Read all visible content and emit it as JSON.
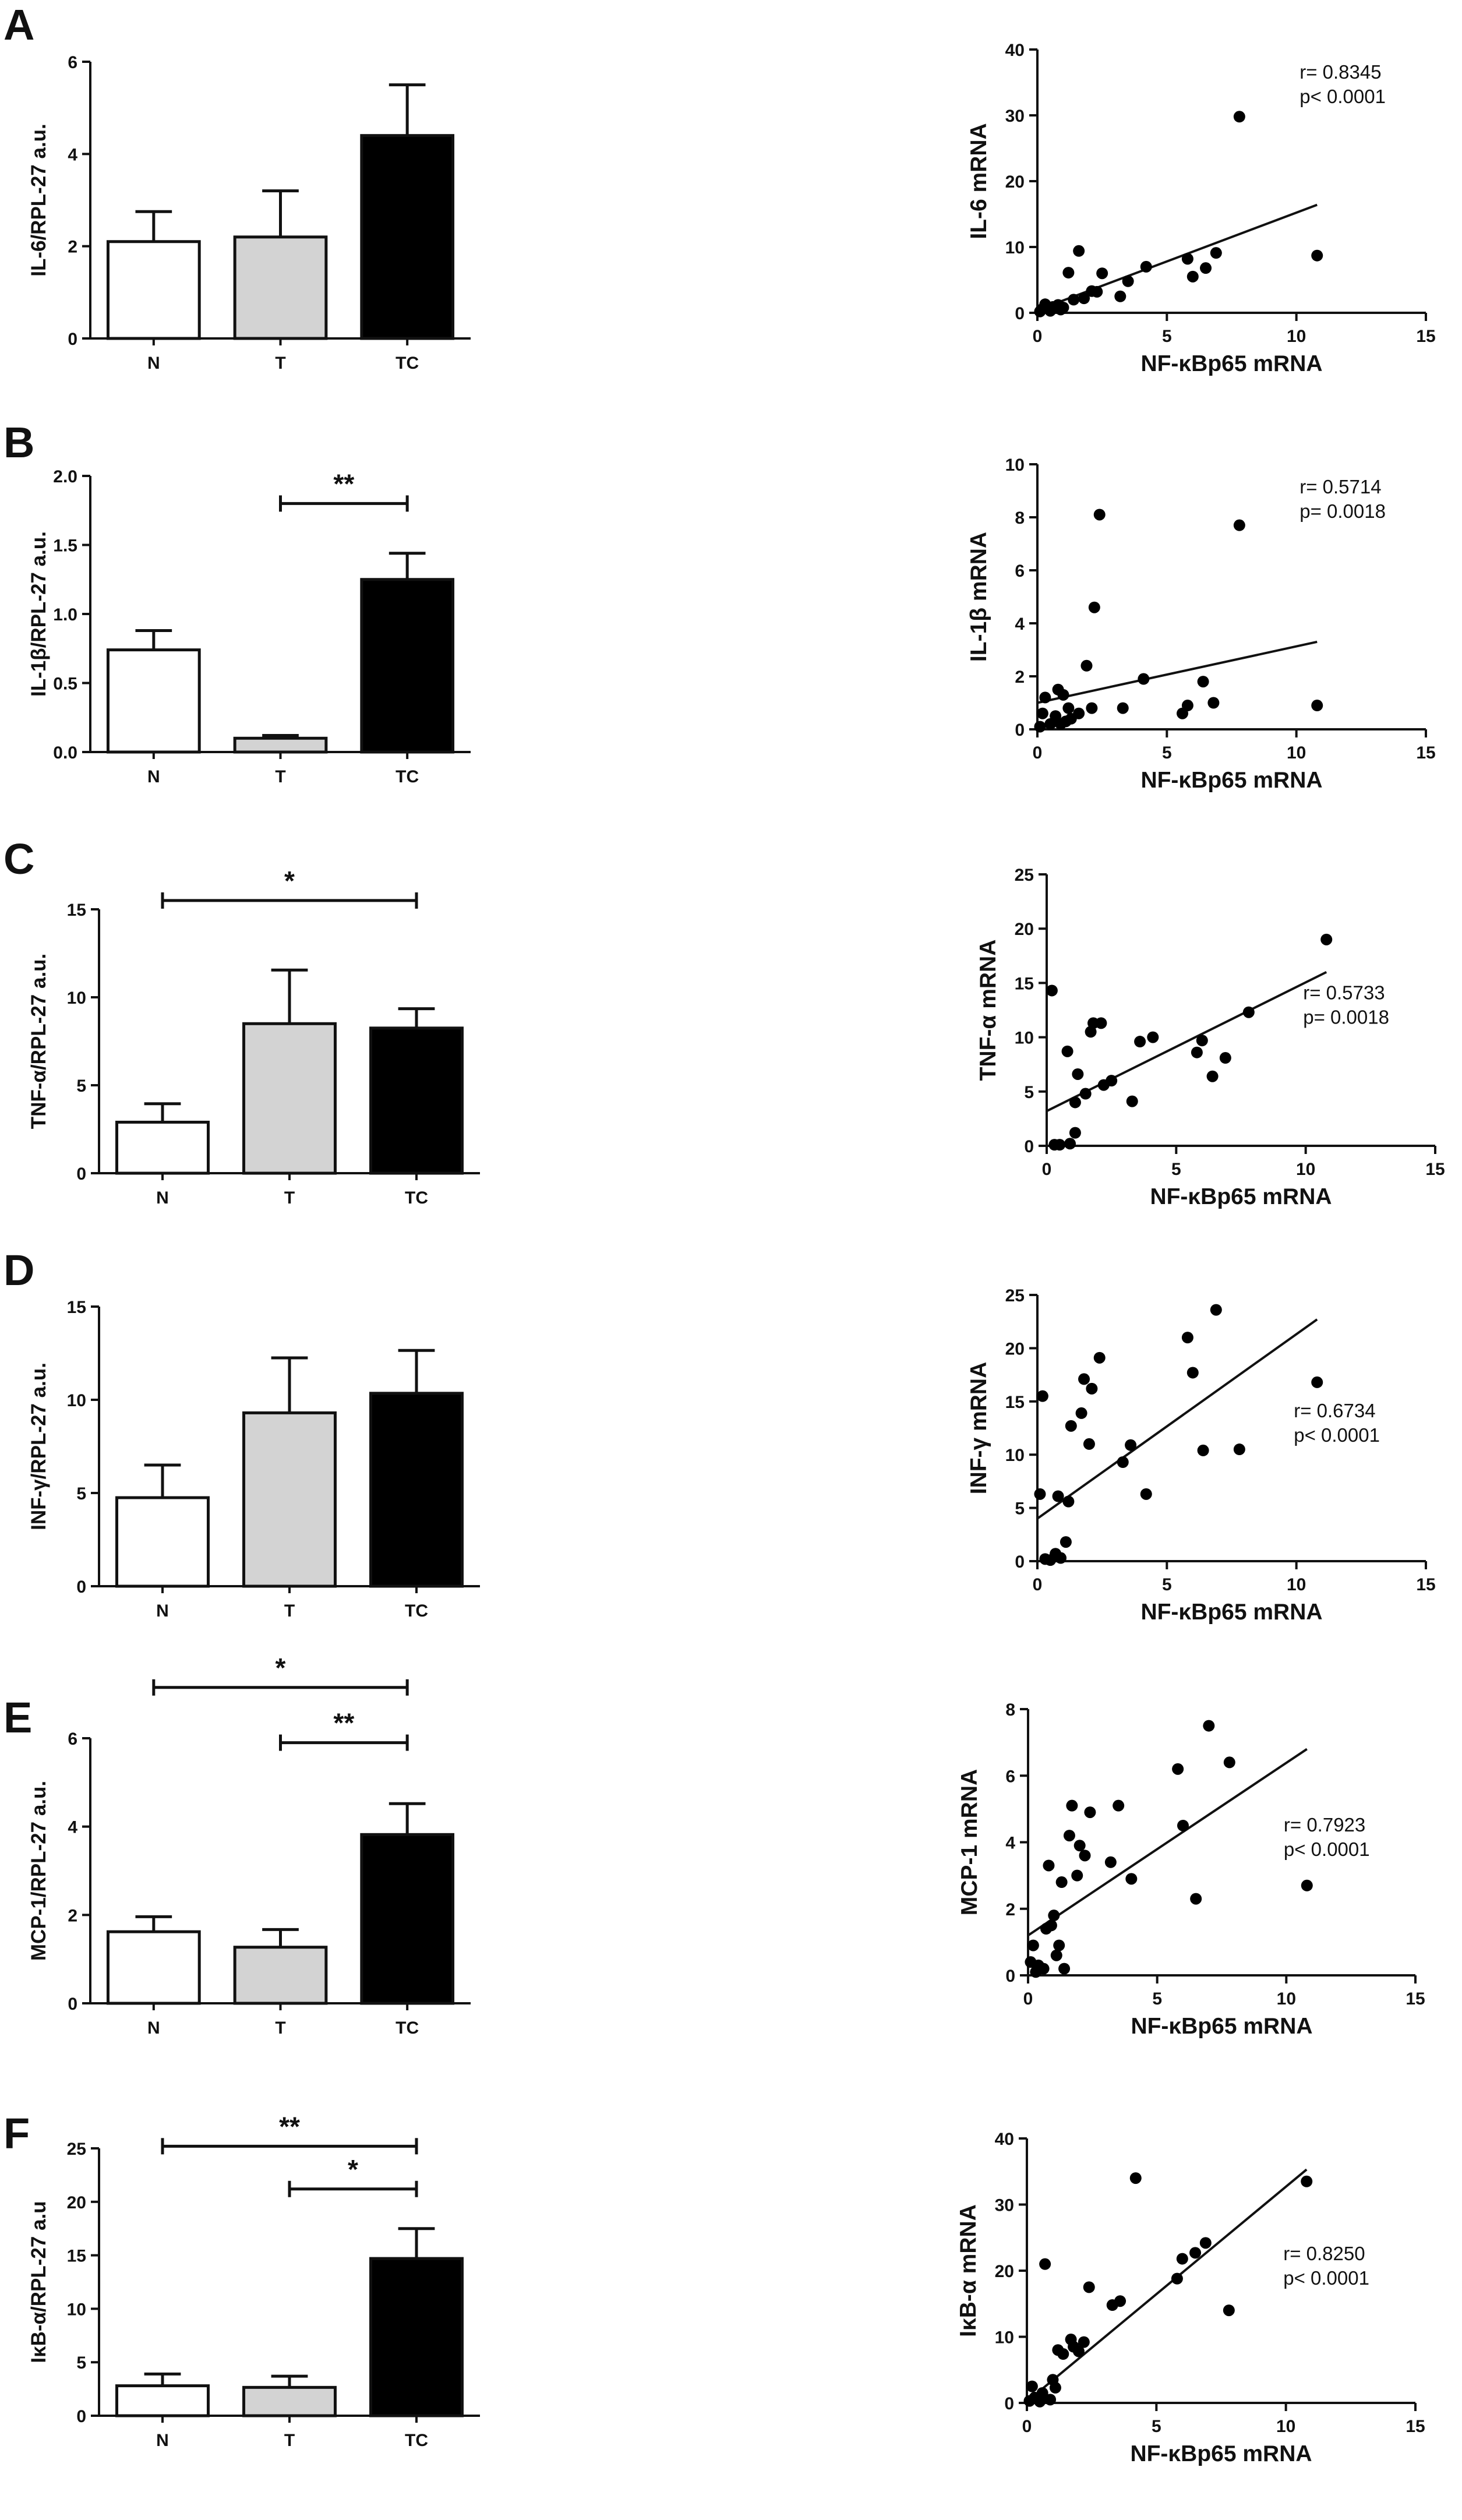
{
  "chart_data": [
    {
      "panel": "A",
      "type": "bar",
      "categories": [
        "N",
        "T",
        "TC"
      ],
      "values": [
        2.1,
        2.2,
        4.4
      ],
      "errors": [
        0.65,
        1.0,
        1.1
      ],
      "colors": [
        "#ffffff",
        "#d3d3d3",
        "#000000"
      ],
      "ylabel": "IL-6/RPL-27 a.u.",
      "ylim": [
        0,
        6
      ],
      "yticks": [
        0,
        2,
        4,
        6
      ],
      "significance": []
    },
    {
      "panel": "A",
      "type": "scatter",
      "xlabel": "NF-κBp65 mRNA",
      "ylabel": "IL-6 mRNA",
      "xlim": [
        0,
        15
      ],
      "xticks": [
        0,
        5,
        10,
        15
      ],
      "ylim": [
        0,
        40
      ],
      "yticks": [
        0,
        10,
        20,
        30,
        40
      ],
      "stats": [
        "r= 0.8345",
        "p< 0.0001"
      ],
      "stats_pos": "top-right",
      "fit": [
        [
          0,
          0.4
        ],
        [
          10.8,
          16.4
        ]
      ],
      "points": [
        [
          0.1,
          0.2
        ],
        [
          0.2,
          0.6
        ],
        [
          0.3,
          1.3
        ],
        [
          0.5,
          0.3
        ],
        [
          0.6,
          0.9
        ],
        [
          0.8,
          1.2
        ],
        [
          0.9,
          0.5
        ],
        [
          1.0,
          0.8
        ],
        [
          1.2,
          6.1
        ],
        [
          1.4,
          2.0
        ],
        [
          1.6,
          9.4
        ],
        [
          1.8,
          2.2
        ],
        [
          2.1,
          3.3
        ],
        [
          2.3,
          3.2
        ],
        [
          2.5,
          6.0
        ],
        [
          3.2,
          2.5
        ],
        [
          3.5,
          4.8
        ],
        [
          4.2,
          7.0
        ],
        [
          5.8,
          8.2
        ],
        [
          6.0,
          5.5
        ],
        [
          6.5,
          6.8
        ],
        [
          6.9,
          9.1
        ],
        [
          7.8,
          29.8
        ],
        [
          10.8,
          8.7
        ]
      ]
    },
    {
      "panel": "B",
      "type": "bar",
      "categories": [
        "N",
        "T",
        "TC"
      ],
      "values": [
        0.74,
        0.1,
        1.25
      ],
      "errors": [
        0.14,
        0.02,
        0.19
      ],
      "colors": [
        "#ffffff",
        "#d3d3d3",
        "#000000"
      ],
      "ylabel": "IL-1β/RPL-27 a.u.",
      "ylim": [
        0,
        2
      ],
      "yticks": [
        0.0,
        0.5,
        1.0,
        1.5,
        2.0
      ],
      "significance": [
        {
          "from": 1,
          "to": 2,
          "label": "**",
          "y": 1.8
        }
      ]
    },
    {
      "panel": "B",
      "type": "scatter",
      "xlabel": "NF-κBp65 mRNA",
      "ylabel": "IL-1β mRNA",
      "xlim": [
        0,
        15
      ],
      "xticks": [
        0,
        5,
        10,
        15
      ],
      "ylim": [
        0,
        10
      ],
      "yticks": [
        0,
        2,
        4,
        6,
        8,
        10
      ],
      "stats": [
        "r= 0.5714",
        "p= 0.0018"
      ],
      "stats_pos": "top-right",
      "fit": [
        [
          0,
          1.0
        ],
        [
          10.8,
          3.3
        ]
      ],
      "points": [
        [
          0.1,
          0.1
        ],
        [
          0.2,
          0.6
        ],
        [
          0.3,
          1.2
        ],
        [
          0.5,
          0.2
        ],
        [
          0.7,
          0.5
        ],
        [
          0.8,
          1.5
        ],
        [
          0.9,
          0.2
        ],
        [
          1.0,
          1.3
        ],
        [
          1.1,
          0.3
        ],
        [
          1.2,
          0.8
        ],
        [
          1.3,
          0.4
        ],
        [
          1.6,
          0.6
        ],
        [
          1.9,
          2.4
        ],
        [
          2.1,
          0.8
        ],
        [
          2.2,
          4.6
        ],
        [
          2.4,
          8.1
        ],
        [
          3.3,
          0.8
        ],
        [
          4.1,
          1.9
        ],
        [
          5.6,
          0.6
        ],
        [
          5.8,
          0.9
        ],
        [
          6.4,
          1.8
        ],
        [
          6.8,
          1.0
        ],
        [
          7.8,
          7.7
        ],
        [
          10.8,
          0.9
        ]
      ]
    },
    {
      "panel": "C",
      "type": "bar",
      "categories": [
        "N",
        "T",
        "TC"
      ],
      "values": [
        2.9,
        8.5,
        8.25
      ],
      "errors": [
        1.05,
        3.05,
        1.1
      ],
      "colors": [
        "#ffffff",
        "#d3d3d3",
        "#000000"
      ],
      "ylabel": "TNF-α/RPL-27 a.u.",
      "ylim": [
        0,
        15
      ],
      "yticks": [
        0,
        5,
        10,
        15
      ],
      "significance": [
        {
          "from": 0,
          "to": 2,
          "label": "*",
          "y": 15.5
        }
      ]
    },
    {
      "panel": "C",
      "type": "scatter",
      "xlabel": "NF-κBp65 mRNA",
      "ylabel": "TNF-α mRNA",
      "xlim": [
        0,
        15
      ],
      "xticks": [
        0,
        5,
        10,
        15
      ],
      "ylim": [
        0,
        25
      ],
      "yticks": [
        0,
        5,
        10,
        15,
        20,
        25
      ],
      "stats": [
        "r= 0.5733",
        "p= 0.0018"
      ],
      "stats_pos": "right",
      "fit": [
        [
          0,
          3.2
        ],
        [
          10.8,
          16.0
        ]
      ],
      "points": [
        [
          0.2,
          14.3
        ],
        [
          0.3,
          0.1
        ],
        [
          0.5,
          0.1
        ],
        [
          0.8,
          8.7
        ],
        [
          0.9,
          0.2
        ],
        [
          1.1,
          1.2
        ],
        [
          1.1,
          4.0
        ],
        [
          1.2,
          6.6
        ],
        [
          1.5,
          4.8
        ],
        [
          1.7,
          10.5
        ],
        [
          1.8,
          11.3
        ],
        [
          2.1,
          11.3
        ],
        [
          2.2,
          5.6
        ],
        [
          2.5,
          6.0
        ],
        [
          3.3,
          4.1
        ],
        [
          3.6,
          9.6
        ],
        [
          4.1,
          10.0
        ],
        [
          5.8,
          8.6
        ],
        [
          6.0,
          9.7
        ],
        [
          6.4,
          6.4
        ],
        [
          6.9,
          8.1
        ],
        [
          7.8,
          12.3
        ],
        [
          10.8,
          19.0
        ]
      ]
    },
    {
      "panel": "D",
      "type": "bar",
      "categories": [
        "N",
        "T",
        "TC"
      ],
      "values": [
        4.75,
        9.3,
        10.35
      ],
      "errors": [
        1.75,
        2.95,
        2.3
      ],
      "colors": [
        "#ffffff",
        "#d3d3d3",
        "#000000"
      ],
      "ylabel": "INF-γ/RPL-27 a.u.",
      "ylim": [
        0,
        15
      ],
      "yticks": [
        0,
        5,
        10,
        15
      ],
      "significance": []
    },
    {
      "panel": "D",
      "type": "scatter",
      "xlabel": "NF-κBp65 mRNA",
      "ylabel": "INF-γ mRNA",
      "xlim": [
        0,
        15
      ],
      "xticks": [
        0,
        5,
        10,
        15
      ],
      "ylim": [
        0,
        25
      ],
      "yticks": [
        0,
        5,
        10,
        15,
        20,
        25
      ],
      "stats": [
        "r= 0.6734",
        "p< 0.0001"
      ],
      "stats_pos": "right",
      "fit": [
        [
          0,
          4.0
        ],
        [
          10.8,
          22.7
        ]
      ],
      "points": [
        [
          0.1,
          6.3
        ],
        [
          0.2,
          15.5
        ],
        [
          0.3,
          0.2
        ],
        [
          0.5,
          0.1
        ],
        [
          0.7,
          0.7
        ],
        [
          0.8,
          6.1
        ],
        [
          0.9,
          0.3
        ],
        [
          1.1,
          1.8
        ],
        [
          1.2,
          5.6
        ],
        [
          1.3,
          12.7
        ],
        [
          1.7,
          13.9
        ],
        [
          1.8,
          17.1
        ],
        [
          2.0,
          11.0
        ],
        [
          2.1,
          16.2
        ],
        [
          2.4,
          19.1
        ],
        [
          3.3,
          9.3
        ],
        [
          3.6,
          10.9
        ],
        [
          4.2,
          6.3
        ],
        [
          5.8,
          21.0
        ],
        [
          6.0,
          17.7
        ],
        [
          6.4,
          10.4
        ],
        [
          6.9,
          23.6
        ],
        [
          7.8,
          10.5
        ],
        [
          10.8,
          16.8
        ]
      ]
    },
    {
      "panel": "E",
      "type": "bar",
      "categories": [
        "N",
        "T",
        "TC"
      ],
      "values": [
        1.62,
        1.27,
        3.82
      ],
      "errors": [
        0.34,
        0.4,
        0.7
      ],
      "colors": [
        "#ffffff",
        "#d3d3d3",
        "#000000"
      ],
      "ylabel": "MCP-1/RPL-27 a.u.",
      "ylim": [
        0,
        6
      ],
      "yticks": [
        0,
        2,
        4,
        6
      ],
      "significance": [
        {
          "from": 0,
          "to": 2,
          "label": "*",
          "y": 7.15
        },
        {
          "from": 1,
          "to": 2,
          "label": "**",
          "y": 5.9
        }
      ]
    },
    {
      "panel": "E",
      "type": "scatter",
      "xlabel": "NF-κBp65 mRNA",
      "ylabel": "MCP-1 mRNA",
      "xlim": [
        0,
        15
      ],
      "xticks": [
        0,
        5,
        10,
        15
      ],
      "ylim": [
        0,
        8
      ],
      "yticks": [
        0,
        2,
        4,
        6,
        8
      ],
      "stats": [
        "r= 0.7923",
        "p< 0.0001"
      ],
      "stats_pos": "right",
      "fit": [
        [
          0,
          1.2
        ],
        [
          10.8,
          6.8
        ]
      ],
      "points": [
        [
          0.1,
          0.4
        ],
        [
          0.2,
          0.9
        ],
        [
          0.3,
          0.1
        ],
        [
          0.4,
          0.3
        ],
        [
          0.6,
          0.2
        ],
        [
          0.7,
          1.4
        ],
        [
          0.8,
          3.3
        ],
        [
          0.9,
          1.5
        ],
        [
          1.0,
          1.8
        ],
        [
          1.1,
          0.6
        ],
        [
          1.2,
          0.9
        ],
        [
          1.3,
          2.8
        ],
        [
          1.4,
          0.2
        ],
        [
          1.6,
          4.2
        ],
        [
          1.7,
          5.1
        ],
        [
          1.9,
          3.0
        ],
        [
          2.0,
          3.9
        ],
        [
          2.2,
          3.6
        ],
        [
          2.4,
          4.9
        ],
        [
          3.2,
          3.4
        ],
        [
          3.5,
          5.1
        ],
        [
          4.0,
          2.9
        ],
        [
          5.8,
          6.2
        ],
        [
          6.0,
          4.5
        ],
        [
          6.5,
          2.3
        ],
        [
          7.0,
          7.5
        ],
        [
          7.8,
          6.4
        ],
        [
          10.8,
          2.7
        ]
      ]
    },
    {
      "panel": "F",
      "type": "bar",
      "categories": [
        "N",
        "T",
        "TC"
      ],
      "values": [
        2.8,
        2.65,
        14.7
      ],
      "errors": [
        1.1,
        1.05,
        2.8
      ],
      "colors": [
        "#ffffff",
        "#d3d3d3",
        "#000000"
      ],
      "ylabel": "IκB-α/RPL-27 a.u",
      "ylim": [
        0,
        25
      ],
      "yticks": [
        0,
        5,
        10,
        15,
        20,
        25
      ],
      "significance": [
        {
          "from": 0,
          "to": 2,
          "label": "**",
          "y": 25.2
        },
        {
          "from": 1,
          "to": 2,
          "label": "*",
          "y": 21.2
        }
      ]
    },
    {
      "panel": "F",
      "type": "scatter",
      "xlabel": "NF-κBp65 mRNA",
      "ylabel": "IκB-α mRNA",
      "xlim": [
        0,
        15
      ],
      "xticks": [
        0,
        5,
        10,
        15
      ],
      "ylim": [
        0,
        40
      ],
      "yticks": [
        0,
        10,
        20,
        30,
        40
      ],
      "stats": [
        "r= 0.8250",
        "p< 0.0001"
      ],
      "stats_pos": "right",
      "fit": [
        [
          0,
          0.2
        ],
        [
          10.8,
          35.3
        ]
      ],
      "points": [
        [
          0.1,
          0.3
        ],
        [
          0.2,
          2.5
        ],
        [
          0.3,
          0.8
        ],
        [
          0.5,
          0.2
        ],
        [
          0.6,
          1.5
        ],
        [
          0.7,
          21.0
        ],
        [
          0.9,
          0.5
        ],
        [
          1.0,
          3.5
        ],
        [
          1.1,
          2.3
        ],
        [
          1.2,
          8.0
        ],
        [
          1.4,
          7.4
        ],
        [
          1.7,
          9.6
        ],
        [
          1.8,
          8.5
        ],
        [
          2.0,
          7.8
        ],
        [
          2.2,
          9.2
        ],
        [
          2.4,
          17.5
        ],
        [
          3.3,
          14.8
        ],
        [
          3.6,
          15.4
        ],
        [
          4.2,
          34.0
        ],
        [
          5.8,
          18.8
        ],
        [
          6.0,
          21.8
        ],
        [
          6.5,
          22.7
        ],
        [
          6.9,
          24.2
        ],
        [
          7.8,
          14.0
        ],
        [
          10.8,
          33.5
        ]
      ]
    }
  ],
  "panel_letters": [
    "A",
    "B",
    "C",
    "D",
    "E",
    "F"
  ]
}
